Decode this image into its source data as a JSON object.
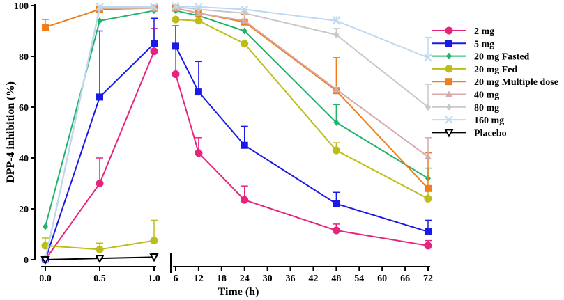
{
  "chart_data": {
    "type": "line",
    "title": "",
    "xlabel": "Time (h)",
    "ylabel": "DPP-4 inhibition (%)",
    "ylim": [
      0,
      100
    ],
    "y_ticks": [
      "0",
      "20",
      "40",
      "60",
      "80",
      "100"
    ],
    "x_segments": [
      {
        "range": [
          0,
          1
        ],
        "ticks": [
          "0.0",
          "0.5",
          "1.0"
        ]
      },
      {
        "range": [
          6,
          72
        ],
        "ticks": [
          "6",
          "12",
          "18",
          "24",
          "30",
          "36",
          "42",
          "48",
          "54",
          "60",
          "66",
          "72"
        ]
      }
    ],
    "legend_position": "right",
    "series": [
      {
        "name": "2 mg",
        "color": "#E6247D",
        "marker": "circle",
        "x": [
          0,
          0.5,
          1.0,
          6,
          12,
          24,
          48,
          72
        ],
        "y": [
          0,
          30,
          82,
          73,
          42,
          23.5,
          11.5,
          5.5
        ],
        "err": [
          0,
          10,
          9,
          10,
          6,
          5.5,
          2.5,
          2
        ]
      },
      {
        "name": "5 mg",
        "color": "#1A1AE6",
        "marker": "square",
        "x": [
          0,
          0.5,
          1.0,
          6,
          12,
          24,
          48,
          72
        ],
        "y": [
          0,
          64,
          85,
          84,
          66,
          45,
          22,
          11
        ],
        "err": [
          0,
          26,
          10,
          8,
          12,
          7.5,
          4.5,
          4.5
        ]
      },
      {
        "name": "20 mg Fasted",
        "color": "#1FB36B",
        "marker": "diamond",
        "x": [
          0,
          0.5,
          1.0,
          6,
          12,
          24,
          48,
          72
        ],
        "y": [
          13,
          94,
          98,
          98,
          96,
          90,
          54,
          32
        ],
        "err": [
          0,
          0,
          0,
          0,
          0,
          0,
          7,
          4
        ]
      },
      {
        "name": "20 mg Fed",
        "color": "#BDBD1A",
        "marker": "circle",
        "x": [
          0,
          0.5,
          1.0,
          6,
          12,
          24,
          48,
          72
        ],
        "y": [
          5.5,
          4,
          7.5,
          94.5,
          94,
          85,
          43,
          24
        ],
        "err": [
          3,
          2.5,
          8,
          0,
          0,
          0,
          3,
          3
        ]
      },
      {
        "name": "20 mg Multiple dose",
        "color": "#F07F1B",
        "marker": "square",
        "x": [
          0,
          0.5,
          1.0,
          6,
          12,
          24,
          48,
          72
        ],
        "y": [
          91.5,
          98.5,
          99,
          99,
          97,
          93.5,
          66.5,
          28
        ],
        "err": [
          3,
          0,
          0,
          0,
          0,
          3,
          13,
          14
        ]
      },
      {
        "name": "40 mg",
        "color": "#D9A8A8",
        "marker": "triangle",
        "x": [
          0,
          0.5,
          1.0,
          6,
          12,
          24,
          48,
          72
        ],
        "y": [
          0,
          99,
          99,
          99,
          97,
          94,
          67,
          40.5
        ],
        "err": [
          0,
          0,
          0,
          0,
          0,
          0,
          0,
          7.5
        ]
      },
      {
        "name": "80 mg",
        "color": "#C8C8C8",
        "marker": "diamond",
        "x": [
          0,
          0.5,
          1.0,
          6,
          12,
          24,
          48,
          72
        ],
        "y": [
          0,
          99,
          99,
          99.5,
          98.5,
          97,
          88.5,
          60
        ],
        "err": [
          0,
          0,
          0,
          0,
          0,
          0,
          2.5,
          9
        ]
      },
      {
        "name": "160 mg",
        "color": "#BCD8F2",
        "marker": "x",
        "x": [
          0,
          0.5,
          1.0,
          6,
          12,
          24,
          48,
          72
        ],
        "y": [
          0,
          99.5,
          99.5,
          99.8,
          99.5,
          98.5,
          94,
          79.5
        ],
        "err": [
          0,
          0,
          0,
          0,
          0,
          0,
          1.5,
          8
        ]
      },
      {
        "name": "Placebo",
        "color": "#000000",
        "marker": "triangle-down",
        "x": [
          0,
          0.5,
          1.0
        ],
        "y": [
          0,
          0.5,
          1
        ],
        "err": [
          0,
          0.5,
          1.5
        ]
      }
    ]
  }
}
